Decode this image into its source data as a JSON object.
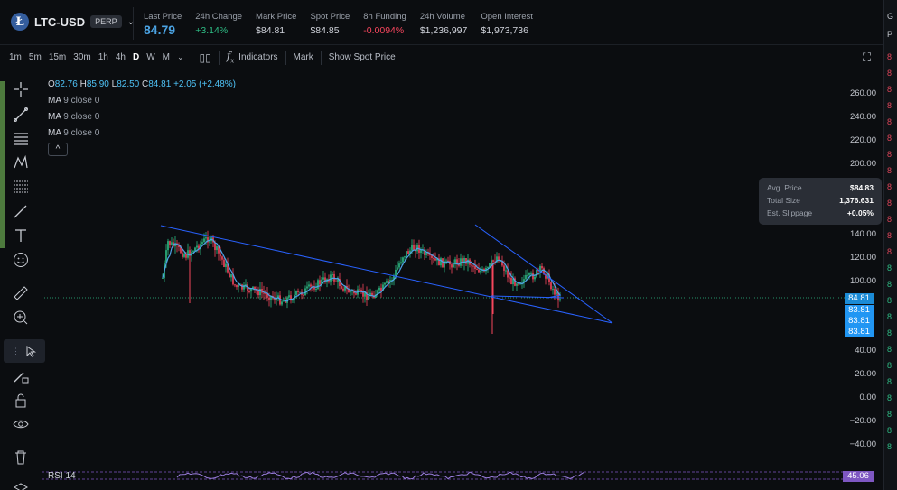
{
  "header": {
    "symbol": "LTC-USD",
    "badge": "PERP",
    "coin_glyph": "Ł",
    "stats": [
      {
        "key": "last_price",
        "label": "Last Price",
        "value": "84.79"
      },
      {
        "key": "change",
        "label": "24h Change",
        "value": "+3.14%"
      },
      {
        "key": "mark",
        "label": "Mark Price",
        "value": "$84.81"
      },
      {
        "key": "spot",
        "label": "Spot Price",
        "value": "$84.85"
      },
      {
        "key": "funding",
        "label": "8h Funding",
        "value": "-0.0094%"
      },
      {
        "key": "volume",
        "label": "24h Volume",
        "value": "$1,236,997"
      },
      {
        "key": "oi",
        "label": "Open Interest",
        "value": "$1,973,736"
      }
    ]
  },
  "toolbar": {
    "intervals": [
      "1m",
      "5m",
      "15m",
      "30m",
      "1h",
      "4h",
      "D",
      "W",
      "M"
    ],
    "active_interval": "D",
    "indicators_label": "Indicators",
    "mark_label": "Mark",
    "show_spot_label": "Show Spot Price"
  },
  "legend": {
    "o_label": "O",
    "o": "82.76",
    "h_label": "H",
    "h": "85.90",
    "l_label": "L",
    "l": "82.50",
    "c_label": "C",
    "c": "84.81",
    "change": "+2.05 (+2.48%)",
    "ma_rows": [
      {
        "name": "MA",
        "params": "9 close 0"
      },
      {
        "name": "MA",
        "params": "9 close 0"
      },
      {
        "name": "MA",
        "params": "9 close 0"
      }
    ],
    "collapse_glyph": "^"
  },
  "yaxis": {
    "ticks": [
      "260.00",
      "240.00",
      "220.00",
      "200.00",
      "140.00",
      "120.00",
      "100.00",
      "40.00",
      "20.00",
      "0.00",
      "−20.00",
      "−40.00"
    ],
    "price_tags": [
      "84.81",
      "83.81",
      "83.81",
      "83.81"
    ]
  },
  "order_tooltip": {
    "rows": [
      {
        "label": "Avg. Price",
        "value": "$84.83"
      },
      {
        "label": "Total Size",
        "value": "1,376.631"
      },
      {
        "label": "Est. Slippage",
        "value": "+0.05%"
      }
    ]
  },
  "rsi": {
    "label": "RSI 14",
    "value": "45.06"
  },
  "right_edge": {
    "letters": [
      "G",
      "P"
    ],
    "numbers": [
      "8",
      "8",
      "8",
      "8",
      "8",
      "8",
      "8",
      "8",
      "8",
      "8",
      "8",
      "8",
      "8",
      "8",
      "8",
      "8",
      "8",
      "8",
      "8",
      "8",
      "8",
      "8",
      "8",
      "8",
      "8"
    ]
  },
  "colors": {
    "background": "#0b0d10",
    "accent": "#4ba3e3",
    "positive": "#2ebd85",
    "negative": "#f6465d",
    "trendline": "#2962ff",
    "rsi": "#7e57c2"
  }
}
